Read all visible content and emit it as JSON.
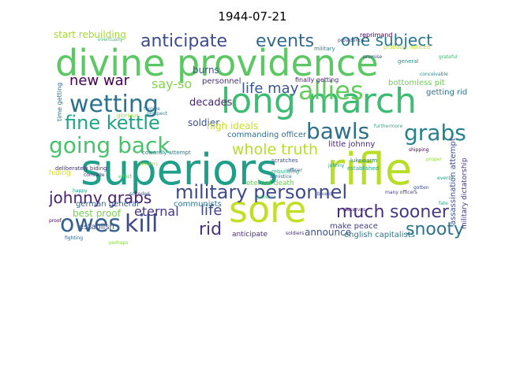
{
  "title": "1944-07-21",
  "words": [
    {
      "text": "divine providence",
      "color": "#5cc863"
    },
    {
      "text": "long march",
      "color": "#3fbc73"
    },
    {
      "text": "superiors",
      "color": "#1f9e89"
    },
    {
      "text": "rifle",
      "color": "#b8de29"
    },
    {
      "text": "sore",
      "color": "#c2df23"
    },
    {
      "text": "wetting",
      "color": "#2c728e"
    },
    {
      "text": "military personnel",
      "color": "#3e4a89"
    },
    {
      "text": "going back",
      "color": "#4ac16d"
    },
    {
      "text": "allies",
      "color": "#65cb5e"
    },
    {
      "text": "anticipate",
      "color": "#3e4c8a"
    },
    {
      "text": "events",
      "color": "#31688e"
    },
    {
      "text": "fine kettle",
      "color": "#20a486"
    },
    {
      "text": "grabs",
      "color": "#26828e"
    },
    {
      "text": "bawls",
      "color": "#2d708e"
    },
    {
      "text": "kill",
      "color": "#3e4a89"
    },
    {
      "text": "owes",
      "color": "#33628d"
    },
    {
      "text": "johnny grabs",
      "color": "#481f70"
    },
    {
      "text": "sooner",
      "color": "#453882"
    },
    {
      "text": "snooty",
      "color": "#2c728e"
    },
    {
      "text": "much",
      "color": "#472c7a"
    },
    {
      "text": "one subject",
      "color": "#2a788e"
    },
    {
      "text": "new war",
      "color": "#440154"
    },
    {
      "text": "whole truth",
      "color": "#b5de2b"
    },
    {
      "text": "life may",
      "color": "#38588c"
    },
    {
      "text": "rid",
      "color": "#46337f"
    },
    {
      "text": "eternal",
      "color": "#453581"
    },
    {
      "text": "life",
      "color": "#414487"
    },
    {
      "text": "say-so",
      "color": "#84d44b"
    },
    {
      "text": "burns",
      "color": "#38598c"
    },
    {
      "text": "soldier",
      "color": "#3b528b"
    },
    {
      "text": "high ideals",
      "color": "#c8e020"
    },
    {
      "text": "decades",
      "color": "#482576"
    },
    {
      "text": "start rebuilding",
      "color": "#a5db36"
    },
    {
      "text": "best proof",
      "color": "#7ad151"
    },
    {
      "text": "commanding officer",
      "color": "#2e6f8e"
    },
    {
      "text": "announce",
      "color": "#3a538b"
    },
    {
      "text": "make peace",
      "color": "#433e85"
    },
    {
      "text": "german general",
      "color": "#31688e"
    },
    {
      "text": "communists",
      "color": "#2a768e"
    },
    {
      "text": "eternal death",
      "color": "#6ccd5a"
    },
    {
      "text": "english capitalists",
      "color": "#2a788e"
    },
    {
      "text": "getting rid",
      "color": "#2d718e"
    },
    {
      "text": "little johnny",
      "color": "#482878"
    },
    {
      "text": "bottomless pit",
      "color": "#6ece58"
    },
    {
      "text": "assassination attempt",
      "color": "#3c508b"
    },
    {
      "text": "military dictatorship",
      "color": "#453882"
    },
    {
      "text": "personnel",
      "color": "#46327e"
    },
    {
      "text": "finally getting",
      "color": "#482374"
    },
    {
      "text": "reprimand",
      "color": "#440154"
    },
    {
      "text": "establish",
      "color": "#3b518b"
    },
    {
      "text": "anticipate",
      "color": "#472d7b"
    },
    {
      "text": "hiding",
      "color": "#dde318"
    },
    {
      "text": "time getting",
      "color": "#2c728e"
    },
    {
      "text": "glorious",
      "color": "#9bd93c"
    },
    {
      "text": "deliberately biding",
      "color": "#46307e"
    },
    {
      "text": "military",
      "color": "#26818e"
    },
    {
      "text": "rebuilding",
      "color": "#2db27d"
    },
    {
      "text": "probably noticed",
      "color": "#bddf26"
    },
    {
      "text": "cowardly attempt",
      "color": "#2a778e"
    },
    {
      "text": "providence",
      "color": "#404688"
    },
    {
      "text": "lukewarm",
      "color": "#25838e"
    },
    {
      "text": "established",
      "color": "#1fa188"
    },
    {
      "text": "general",
      "color": "#1f968b"
    },
    {
      "text": "eventually",
      "color": "#3dbc74"
    },
    {
      "text": "scratches",
      "color": "#3c4f8a"
    },
    {
      "text": "conceivable",
      "color": "#23888e"
    },
    {
      "text": "grateful",
      "color": "#38b977"
    },
    {
      "text": "shipping",
      "color": "#440154"
    },
    {
      "text": "fighting",
      "color": "#355f8d"
    },
    {
      "text": "perhaps",
      "color": "#8bd646"
    },
    {
      "text": "forgive",
      "color": "#2b748e"
    },
    {
      "text": "prospect",
      "color": "#238a8d"
    },
    {
      "text": "officer",
      "color": "#34618d"
    },
    {
      "text": "soldiers",
      "color": "#472d7b"
    },
    {
      "text": "leaders",
      "color": "#95d840"
    },
    {
      "text": "events",
      "color": "#1e9b8a"
    },
    {
      "text": "furthermore",
      "color": "#28ae80"
    },
    {
      "text": "deserves",
      "color": "#482677"
    },
    {
      "text": "bound",
      "color": "#3e4989"
    },
    {
      "text": "happy",
      "color": "#1fa088"
    },
    {
      "text": "effect",
      "color": "#50c46a"
    },
    {
      "text": "promise",
      "color": "#3f4788"
    },
    {
      "text": "sounded",
      "color": "#355e8d"
    },
    {
      "text": "many officers",
      "color": "#433d84"
    },
    {
      "text": "comrade",
      "color": "#472f7d"
    },
    {
      "text": "armistice",
      "color": "#2e6e8e"
    },
    {
      "text": "johnny",
      "color": "#1f988b"
    },
    {
      "text": "proof",
      "color": "#440154"
    },
    {
      "text": "persons",
      "color": "#3aba76"
    },
    {
      "text": "fate",
      "color": "#25ab82"
    },
    {
      "text": "gotten",
      "color": "#3d4e8a"
    },
    {
      "text": "proper",
      "color": "#95d840"
    }
  ]
}
